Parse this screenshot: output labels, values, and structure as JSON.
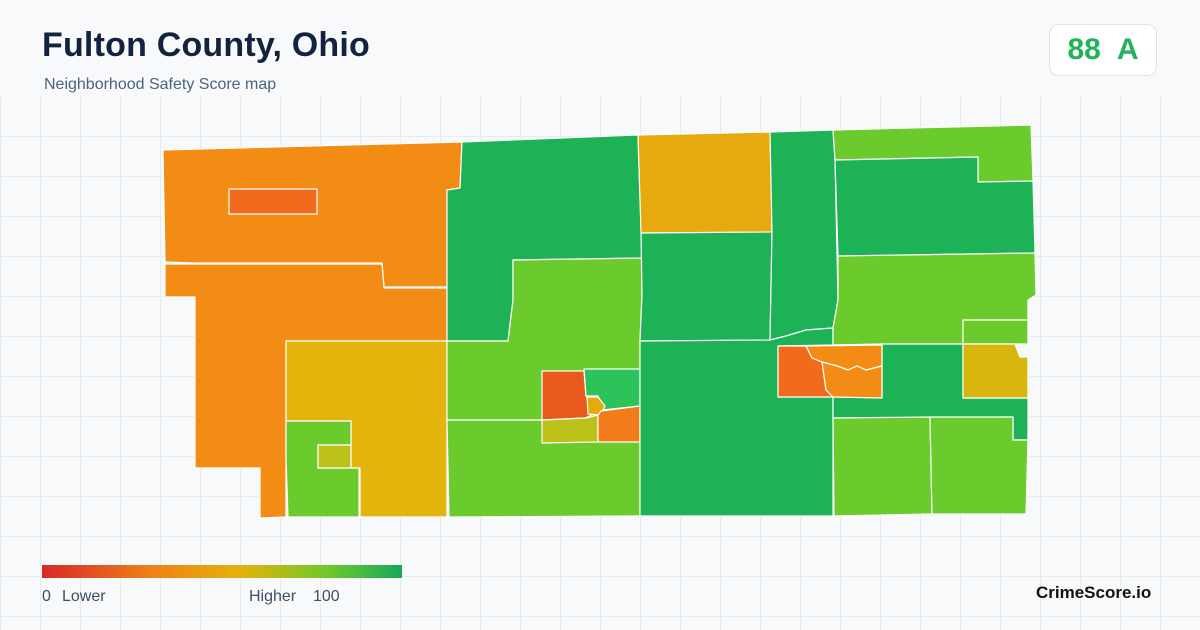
{
  "header": {
    "title": "Fulton County, Ohio",
    "subtitle": "Neighborhood Safety Score map"
  },
  "score_badge": {
    "score": "88",
    "grade": "A",
    "color": "#22b25a"
  },
  "map": {
    "colors": {
      "orange": "#f28c14",
      "red_orange": "#f26a1c",
      "amber": "#e6a90e",
      "yellow": "#e3b50c",
      "olive": "#bcc21a",
      "light_green": "#6ccb2c",
      "green": "#1eb256",
      "bright_green": "#2cc35a",
      "border": "#ffffff"
    },
    "regions": [
      "northwest-orange",
      "west-orange",
      "north-central-green",
      "central-lightgreen",
      "north-amber",
      "north-mid-green",
      "northeast-lightgreen",
      "northeast-green",
      "east-lightgreen",
      "southwest-yellow",
      "south-center-green",
      "south-lightgreen-1",
      "south-lightgreen-2",
      "town-red",
      "town-green",
      "town-olive",
      "town-orange",
      "east-town-red",
      "east-town-orange",
      "east-yellow"
    ]
  },
  "legend": {
    "low_value": "0",
    "low_label": "Lower",
    "high_label": "Higher",
    "high_value": "100",
    "gradient": [
      "#d7282a",
      "#ee7f18",
      "#e6b20a",
      "#6cc82c",
      "#17a857"
    ]
  },
  "brand": "CrimeScore.io"
}
